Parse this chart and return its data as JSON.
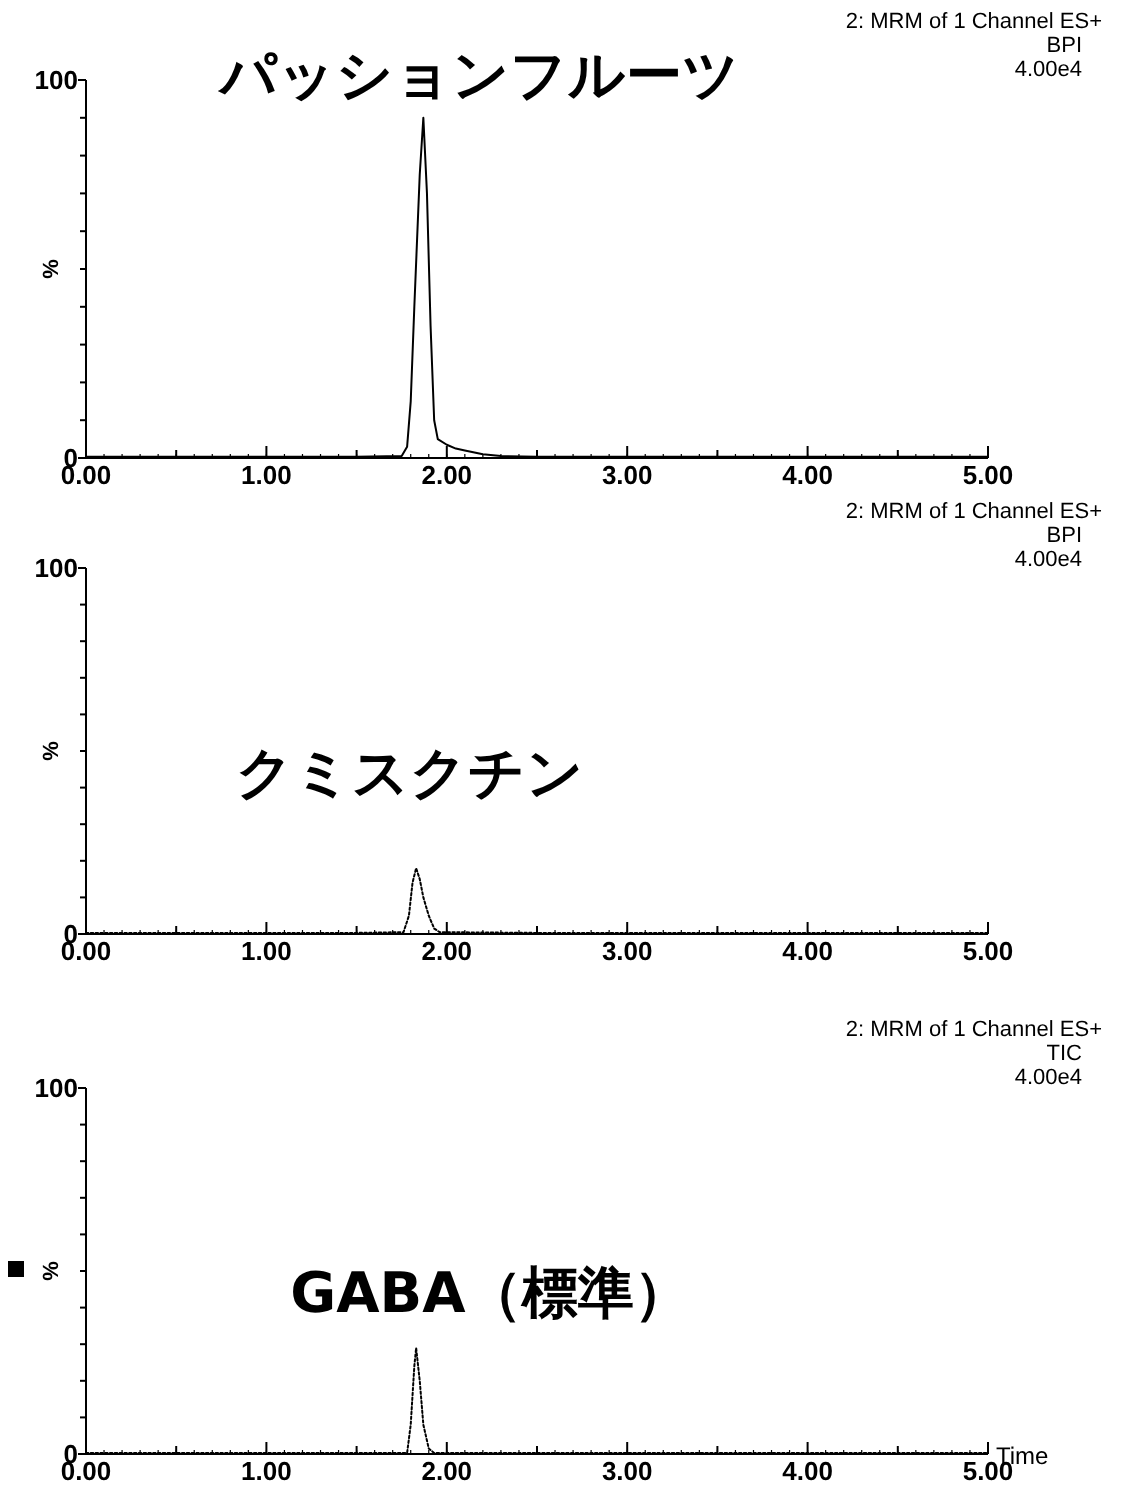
{
  "chart_data": [
    {
      "type": "line",
      "title": "パッションフルーツ",
      "ylabel": "%",
      "annotations": [
        "2: MRM of 1 Channel ES+",
        "BPI",
        "4.00e4"
      ],
      "xlim": [
        0,
        5
      ],
      "ylim": [
        0,
        100
      ],
      "xticks": [
        {
          "value": 0,
          "label": "0.00"
        },
        {
          "value": 0.5,
          "label": null
        },
        {
          "value": 1,
          "label": "1.00"
        },
        {
          "value": 1.5,
          "label": null
        },
        {
          "value": 2,
          "label": "2.00"
        },
        {
          "value": 2.5,
          "label": null
        },
        {
          "value": 3,
          "label": "3.00"
        },
        {
          "value": 3.5,
          "label": null
        },
        {
          "value": 4,
          "label": "4.00"
        },
        {
          "value": 4.5,
          "label": null
        },
        {
          "value": 5,
          "label": "5.00"
        }
      ],
      "yticks": [
        {
          "value": 0,
          "label": "0"
        },
        {
          "value": 10,
          "label": null
        },
        {
          "value": 20,
          "label": null
        },
        {
          "value": 30,
          "label": null
        },
        {
          "value": 40,
          "label": null
        },
        {
          "value": 50,
          "label": null
        },
        {
          "value": 60,
          "label": null
        },
        {
          "value": 70,
          "label": null
        },
        {
          "value": 80,
          "label": null
        },
        {
          "value": 90,
          "label": null
        },
        {
          "value": 100,
          "label": "100"
        }
      ],
      "grid": false,
      "series": [
        {
          "color": "#000000",
          "line_style": "solid",
          "x": [
            0,
            0.5,
            1,
            1.5,
            1.75,
            1.78,
            1.8,
            1.82,
            1.85,
            1.87,
            1.89,
            1.91,
            1.93,
            1.95,
            2,
            2.05,
            2.1,
            2.2,
            2.3,
            2.5,
            3,
            4,
            5
          ],
          "values": [
            0.3,
            0.3,
            0.3,
            0.3,
            0.5,
            3,
            15,
            40,
            75,
            90,
            70,
            35,
            10,
            5,
            3.5,
            2.5,
            2,
            1,
            0.5,
            0.3,
            0.3,
            0.3,
            0.3
          ]
        }
      ]
    },
    {
      "type": "line",
      "title": "クミスクチン",
      "ylabel": "%",
      "annotations": [
        "2: MRM of 1 Channel ES+",
        "BPI",
        "4.00e4"
      ],
      "xlim": [
        0,
        5
      ],
      "ylim": [
        0,
        100
      ],
      "xticks": [
        {
          "value": 0,
          "label": "0.00"
        },
        {
          "value": 0.5,
          "label": null
        },
        {
          "value": 1,
          "label": "1.00"
        },
        {
          "value": 1.5,
          "label": null
        },
        {
          "value": 2,
          "label": "2.00"
        },
        {
          "value": 2.5,
          "label": null
        },
        {
          "value": 3,
          "label": "3.00"
        },
        {
          "value": 3.5,
          "label": null
        },
        {
          "value": 4,
          "label": "4.00"
        },
        {
          "value": 4.5,
          "label": null
        },
        {
          "value": 5,
          "label": "5.00"
        }
      ],
      "yticks": [
        {
          "value": 0,
          "label": "0"
        },
        {
          "value": 10,
          "label": null
        },
        {
          "value": 20,
          "label": null
        },
        {
          "value": 30,
          "label": null
        },
        {
          "value": 40,
          "label": null
        },
        {
          "value": 50,
          "label": null
        },
        {
          "value": 60,
          "label": null
        },
        {
          "value": 70,
          "label": null
        },
        {
          "value": 80,
          "label": null
        },
        {
          "value": 90,
          "label": null
        },
        {
          "value": 100,
          "label": "100"
        }
      ],
      "grid": false,
      "series": [
        {
          "color": "#000000",
          "line_style": "dotted",
          "x": [
            0,
            1,
            1.5,
            1.76,
            1.79,
            1.81,
            1.83,
            1.85,
            1.87,
            1.9,
            1.93,
            1.96,
            2.5,
            3,
            4,
            5
          ],
          "values": [
            0.3,
            0.3,
            0.3,
            0.5,
            5,
            14,
            18,
            15,
            10,
            5,
            1.5,
            0.5,
            0.3,
            0.3,
            0.3,
            0.3
          ]
        }
      ]
    },
    {
      "type": "line",
      "title": "GABA（標準）",
      "xlabel": "Time",
      "ylabel": "%",
      "annotations": [
        "2: MRM of 1 Channel ES+",
        "TIC",
        "4.00e4"
      ],
      "xlim": [
        0,
        5
      ],
      "ylim": [
        0,
        100
      ],
      "xticks": [
        {
          "value": 0,
          "label": "0.00"
        },
        {
          "value": 0.5,
          "label": null
        },
        {
          "value": 1,
          "label": "1.00"
        },
        {
          "value": 1.5,
          "label": null
        },
        {
          "value": 2,
          "label": "2.00"
        },
        {
          "value": 2.5,
          "label": null
        },
        {
          "value": 3,
          "label": "3.00"
        },
        {
          "value": 3.5,
          "label": null
        },
        {
          "value": 4,
          "label": "4.00"
        },
        {
          "value": 4.5,
          "label": null
        },
        {
          "value": 5,
          "label": "5.00"
        }
      ],
      "yticks": [
        {
          "value": 0,
          "label": "0"
        },
        {
          "value": 10,
          "label": null
        },
        {
          "value": 20,
          "label": null
        },
        {
          "value": 30,
          "label": null
        },
        {
          "value": 40,
          "label": null
        },
        {
          "value": 50,
          "label": null
        },
        {
          "value": 60,
          "label": null
        },
        {
          "value": 70,
          "label": null
        },
        {
          "value": 80,
          "label": null
        },
        {
          "value": 90,
          "label": null
        },
        {
          "value": 100,
          "label": "100"
        }
      ],
      "grid": false,
      "series": [
        {
          "color": "#000000",
          "line_style": "dotted",
          "x": [
            0,
            1,
            1.5,
            1.78,
            1.8,
            1.82,
            1.83,
            1.85,
            1.87,
            1.9,
            1.93,
            2.5,
            3,
            4,
            5
          ],
          "values": [
            0.3,
            0.3,
            0.3,
            0.3,
            8,
            24,
            29,
            20,
            8,
            1.5,
            0.3,
            0.3,
            0.3,
            0.3,
            0.3
          ]
        }
      ]
    }
  ]
}
